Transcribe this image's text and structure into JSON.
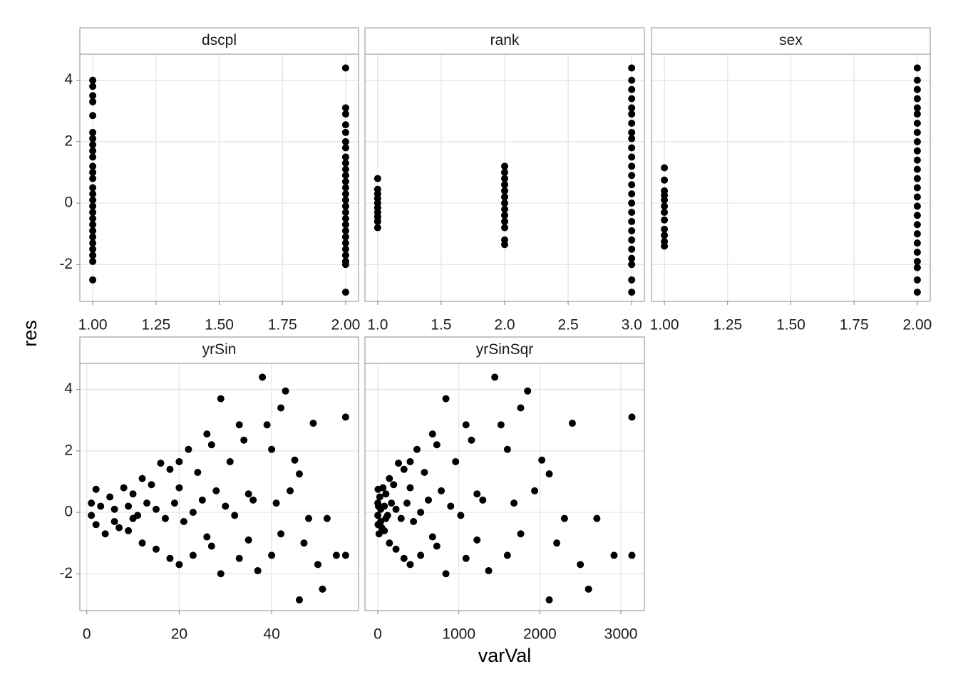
{
  "axis_labels": {
    "x": "varVal",
    "y": "res"
  },
  "chart_data": [
    {
      "type": "scatter",
      "title": "dscpl",
      "color": "#000000",
      "grid": true,
      "xlim": [
        0.949,
        2.051
      ],
      "ylim": [
        -3.2,
        4.85
      ],
      "xticks": [
        {
          "value": 1,
          "label": "1.00"
        },
        1.25,
        {
          "value": 1.5,
          "label": "1.50"
        },
        1.75,
        {
          "value": 2,
          "label": "2.00"
        }
      ],
      "yticks": [
        -2,
        0,
        2,
        4
      ],
      "x": [
        1,
        1,
        1,
        1,
        1,
        1,
        1,
        1,
        1,
        1,
        1,
        1,
        1,
        1,
        1,
        1,
        1,
        1,
        1,
        1,
        1,
        1,
        1,
        1,
        1,
        1,
        1,
        2,
        2,
        2,
        2,
        2,
        2,
        2,
        2,
        2,
        2,
        2,
        2,
        2,
        2,
        2,
        2,
        2,
        2,
        2,
        2,
        2,
        2,
        2,
        2,
        2,
        2,
        2
      ],
      "y": [
        4.0,
        3.8,
        3.5,
        3.3,
        2.85,
        2.3,
        2.1,
        1.9,
        1.7,
        1.5,
        1.2,
        1.0,
        0.8,
        0.5,
        0.3,
        0.1,
        -0.1,
        -0.3,
        -0.5,
        -0.7,
        -0.9,
        -1.1,
        -1.3,
        -1.5,
        -1.7,
        -1.9,
        -2.5,
        4.4,
        3.1,
        2.9,
        2.55,
        2.3,
        2.0,
        1.8,
        1.5,
        1.3,
        1.1,
        0.9,
        0.7,
        0.5,
        0.3,
        0.1,
        -0.1,
        -0.3,
        -0.5,
        -0.7,
        -0.9,
        -1.1,
        -1.3,
        -1.5,
        -1.7,
        -1.9,
        -2.0,
        -2.9
      ]
    },
    {
      "type": "scatter",
      "title": "rank",
      "color": "#000000",
      "grid": true,
      "xlim": [
        0.9,
        3.1
      ],
      "ylim": [
        -3.2,
        4.85
      ],
      "xticks": [
        {
          "value": 1,
          "label": "1.0"
        },
        1.5,
        {
          "value": 2,
          "label": "2.0"
        },
        2.5,
        {
          "value": 3,
          "label": "3.0"
        }
      ],
      "yticks": [
        -2,
        0,
        2,
        4
      ],
      "x": [
        1,
        1,
        1,
        1,
        1,
        1,
        1,
        1,
        1,
        1,
        2,
        2,
        2,
        2,
        2,
        2,
        2,
        2,
        2,
        2,
        2,
        2,
        2,
        3,
        3,
        3,
        3,
        3,
        3,
        3,
        3,
        3,
        3,
        3,
        3,
        3,
        3,
        3,
        3,
        3,
        3,
        3,
        3,
        3,
        3,
        3,
        3,
        3
      ],
      "y": [
        0.8,
        0.45,
        0.3,
        0.15,
        0,
        -0.15,
        -0.3,
        -0.45,
        -0.6,
        -0.8,
        1.2,
        1.0,
        0.8,
        0.6,
        0.4,
        0.2,
        0,
        -0.2,
        -0.4,
        -0.6,
        -0.8,
        -1.2,
        -1.35,
        4.4,
        4.0,
        3.7,
        3.4,
        3.1,
        2.9,
        2.6,
        2.3,
        2.1,
        1.8,
        1.5,
        1.2,
        0.9,
        0.6,
        0.3,
        0,
        -0.3,
        -0.6,
        -0.9,
        -1.2,
        -1.5,
        -1.8,
        -2.0,
        -2.5,
        -2.9
      ]
    },
    {
      "type": "scatter",
      "title": "sex",
      "color": "#000000",
      "grid": true,
      "xlim": [
        0.949,
        2.051
      ],
      "ylim": [
        -3.2,
        4.85
      ],
      "xticks": [
        {
          "value": 1,
          "label": "1.00"
        },
        1.25,
        {
          "value": 1.5,
          "label": "1.50"
        },
        1.75,
        {
          "value": 2,
          "label": "2.00"
        }
      ],
      "yticks": [
        -2,
        0,
        2,
        4
      ],
      "x": [
        1,
        1,
        1,
        1,
        1,
        1,
        1,
        1,
        1,
        1,
        1,
        1,
        2,
        2,
        2,
        2,
        2,
        2,
        2,
        2,
        2,
        2,
        2,
        2,
        2,
        2,
        2,
        2,
        2,
        2,
        2,
        2,
        2,
        2,
        2,
        2,
        2
      ],
      "y": [
        1.15,
        0.75,
        0.4,
        0.25,
        0.1,
        -0.1,
        -0.3,
        -0.55,
        -0.85,
        -1.05,
        -1.25,
        -1.4,
        4.4,
        4.0,
        3.7,
        3.4,
        3.1,
        2.9,
        2.6,
        2.3,
        2.0,
        1.7,
        1.4,
        1.1,
        0.8,
        0.5,
        0.2,
        -0.1,
        -0.4,
        -0.7,
        -1.0,
        -1.3,
        -1.6,
        -1.9,
        -2.1,
        -2.5,
        -2.9
      ]
    },
    {
      "type": "scatter",
      "title": "yrSin",
      "color": "#000000",
      "grid": true,
      "xlim": [
        -1.5,
        58.8
      ],
      "ylim": [
        -3.2,
        4.85
      ],
      "xticks": [
        0,
        20,
        40
      ],
      "yticks": [
        -2,
        0,
        2,
        4
      ],
      "x": [
        38,
        43,
        29,
        56,
        42,
        49,
        39,
        33,
        26,
        34,
        22,
        27,
        40,
        45,
        20,
        31,
        18,
        24,
        46,
        16,
        12,
        8,
        2,
        5,
        10,
        14,
        20,
        28,
        35,
        44,
        1,
        3,
        6,
        9,
        11,
        13,
        15,
        17,
        19,
        23,
        25,
        30,
        32,
        36,
        41,
        48,
        52,
        1,
        2,
        4,
        7,
        9,
        12,
        15,
        18,
        20,
        23,
        27,
        29,
        33,
        37,
        40,
        47,
        50,
        54,
        56,
        46,
        51,
        26,
        35,
        42,
        21,
        10,
        6
      ],
      "y": [
        4.4,
        3.95,
        3.7,
        3.1,
        3.4,
        2.9,
        2.85,
        2.85,
        2.55,
        2.35,
        2.05,
        2.2,
        2.05,
        1.7,
        1.65,
        1.65,
        1.4,
        1.3,
        1.25,
        1.6,
        1.1,
        0.8,
        0.75,
        0.5,
        0.6,
        0.9,
        0.8,
        0.7,
        0.6,
        0.7,
        0.3,
        0.2,
        0.1,
        0.2,
        -0.1,
        0.3,
        0.1,
        -0.2,
        0.3,
        0,
        0.4,
        0.2,
        -0.1,
        0.4,
        0.3,
        -0.2,
        -0.2,
        -0.1,
        -0.4,
        -0.7,
        -0.5,
        -0.6,
        -1.0,
        -1.2,
        -1.5,
        -1.7,
        -1.4,
        -1.1,
        -2.0,
        -1.5,
        -1.9,
        -1.4,
        -1.0,
        -1.7,
        -1.4,
        -1.4,
        -2.85,
        -2.5,
        -0.8,
        -0.9,
        -0.7,
        -0.3,
        -0.2,
        -0.3
      ]
    },
    {
      "type": "scatter",
      "title": "yrSinSqr",
      "color": "#000000",
      "grid": true,
      "xlim": [
        -158,
        3290
      ],
      "ylim": [
        -3.2,
        4.85
      ],
      "xticks": [
        0,
        1000,
        2000,
        3000
      ],
      "yticks": [
        -2,
        0,
        2,
        4
      ],
      "x": [
        1444,
        1849,
        841,
        3136,
        1764,
        2401,
        1521,
        1089,
        676,
        1156,
        484,
        729,
        1600,
        2025,
        400,
        961,
        324,
        576,
        2116,
        256,
        144,
        64,
        4,
        25,
        100,
        196,
        400,
        784,
        1225,
        1936,
        1,
        9,
        36,
        81,
        121,
        169,
        225,
        289,
        361,
        529,
        625,
        900,
        1024,
        1296,
        1681,
        2304,
        2704,
        1,
        4,
        16,
        49,
        81,
        144,
        225,
        324,
        400,
        529,
        729,
        841,
        1089,
        1369,
        1600,
        2209,
        2500,
        2916,
        3136,
        2116,
        2601,
        676,
        1225,
        1764,
        441,
        100,
        36
      ],
      "y": [
        4.4,
        3.95,
        3.7,
        3.1,
        3.4,
        2.9,
        2.85,
        2.85,
        2.55,
        2.35,
        2.05,
        2.2,
        2.05,
        1.7,
        1.65,
        1.65,
        1.4,
        1.3,
        1.25,
        1.6,
        1.1,
        0.8,
        0.75,
        0.5,
        0.6,
        0.9,
        0.8,
        0.7,
        0.6,
        0.7,
        0.3,
        0.2,
        0.1,
        0.2,
        -0.1,
        0.3,
        0.1,
        -0.2,
        0.3,
        0,
        0.4,
        0.2,
        -0.1,
        0.4,
        0.3,
        -0.2,
        -0.2,
        -0.1,
        -0.4,
        -0.7,
        -0.5,
        -0.6,
        -1.0,
        -1.2,
        -1.5,
        -1.7,
        -1.4,
        -1.1,
        -2.0,
        -1.5,
        -1.9,
        -1.4,
        -1.0,
        -1.7,
        -1.4,
        -1.4,
        -2.85,
        -2.5,
        -0.8,
        -0.9,
        -0.7,
        -0.3,
        -0.2,
        -0.3
      ]
    }
  ]
}
